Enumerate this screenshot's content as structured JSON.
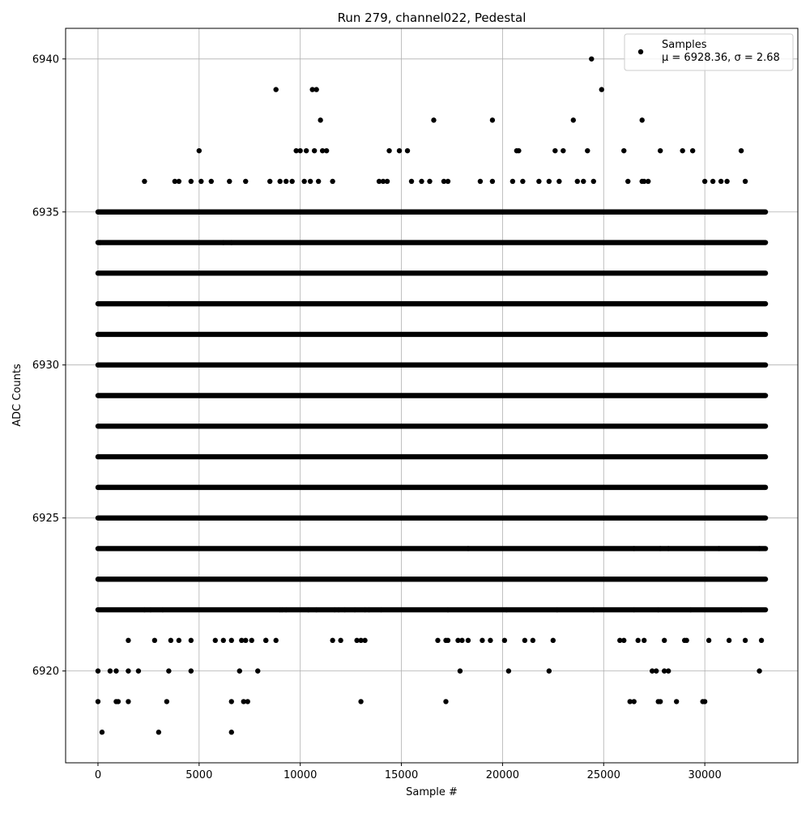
{
  "chart_data": {
    "type": "scatter",
    "title": "Run 279, channel022, Pedestal",
    "xlabel": "Sample #",
    "ylabel": "ADC Counts",
    "xlim": [
      -1600,
      34600
    ],
    "ylim": [
      6917,
      6941
    ],
    "grid": true,
    "legend_placement": "top-right",
    "x_ticks": [
      0,
      5000,
      10000,
      15000,
      20000,
      25000,
      30000
    ],
    "y_ticks": [
      6920,
      6925,
      6930,
      6935,
      6940
    ],
    "x_tick_labels": [
      "0",
      "5000",
      "10000",
      "15000",
      "20000",
      "25000",
      "30000"
    ],
    "y_tick_labels": [
      "6920",
      "6925",
      "6930",
      "6935",
      "6940"
    ],
    "sample_count": 33000,
    "series": [
      {
        "name": "Samples",
        "stats_label": "μ = 6928.36, σ = 2.68",
        "mean": 6928.36,
        "sigma": 2.68,
        "color": "#000000",
        "marker": "circle",
        "dense_levels": [
          6922,
          6923,
          6924,
          6925,
          6926,
          6927,
          6928,
          6929,
          6930,
          6931,
          6932,
          6933,
          6934,
          6935
        ],
        "x": [
          24400,
          8800,
          10600,
          10800,
          24900,
          11000,
          16600,
          19500,
          23500,
          26900,
          5000,
          9800,
          10000,
          10300,
          10700,
          11100,
          11300,
          14400,
          14900,
          15300,
          20700,
          20800,
          22600,
          23000,
          24200,
          26000,
          27800,
          28900,
          29400,
          31800,
          2300,
          3800,
          4000,
          4600,
          5100,
          5600,
          6500,
          7300,
          8500,
          9000,
          9300,
          9600,
          10200,
          10500,
          10900,
          11600,
          13900,
          14100,
          14300,
          15500,
          16000,
          16400,
          17100,
          17300,
          18900,
          19500,
          20500,
          21000,
          21800,
          22300,
          22800,
          23700,
          24000,
          24500,
          26200,
          26900,
          27000,
          27200,
          30000,
          30400,
          30800,
          31100,
          32000,
          800,
          1200,
          100,
          3500,
          6200,
          6600,
          18300,
          20000,
          26500,
          26400,
          27200,
          27800,
          28000,
          28200,
          30000,
          30700,
          31000,
          32700,
          2300,
          2600,
          3200,
          9100,
          11700,
          12200,
          12700,
          13200,
          13400,
          1500,
          2800,
          3600,
          4000,
          6200,
          7100,
          7600,
          8300,
          8800,
          12000,
          13000,
          16800,
          17200,
          18000,
          18300,
          21500,
          22500,
          26000,
          27000,
          29000,
          32000,
          9000,
          9300,
          10400,
          10800,
          11900,
          14000,
          17300,
          20200,
          22700,
          24500,
          26500,
          27700,
          29300,
          31800,
          4600,
          5800,
          6600,
          7300,
          8300,
          11600,
          12800,
          13200,
          17300,
          17800,
          19000,
          19400,
          20100,
          21100,
          25800,
          26700,
          28000,
          29100,
          30200,
          31200,
          32800,
          0,
          600,
          900,
          1500,
          2000,
          3500,
          4600,
          7000,
          7900,
          17900,
          20300,
          22300,
          27400,
          27600,
          28000,
          28200,
          32700,
          0,
          900,
          1000,
          1500,
          3400,
          6600,
          7200,
          7400,
          13000,
          17200,
          26300,
          26500,
          27700,
          27800,
          28600,
          29900,
          30000,
          200,
          3000,
          6600
        ],
        "y": [
          6940,
          6939,
          6939,
          6939,
          6939,
          6938,
          6938,
          6938,
          6938,
          6938,
          6937,
          6937,
          6937,
          6937,
          6937,
          6937,
          6937,
          6937,
          6937,
          6937,
          6937,
          6937,
          6937,
          6937,
          6937,
          6937,
          6937,
          6937,
          6937,
          6937,
          6936,
          6936,
          6936,
          6936,
          6936,
          6936,
          6936,
          6936,
          6936,
          6936,
          6936,
          6936,
          6936,
          6936,
          6936,
          6936,
          6936,
          6936,
          6936,
          6936,
          6936,
          6936,
          6936,
          6936,
          6936,
          6936,
          6936,
          6936,
          6936,
          6936,
          6936,
          6936,
          6936,
          6936,
          6936,
          6936,
          6936,
          6936,
          6936,
          6936,
          6936,
          6936,
          6936,
          6935,
          6935,
          6934,
          6932,
          6934,
          6934,
          6924,
          6923,
          6924,
          6923,
          6923,
          6924,
          6923,
          6924,
          6923,
          6924,
          6923,
          6924,
          6922,
          6922,
          6922,
          6922,
          6922,
          6922,
          6922,
          6922,
          6922,
          6921,
          6921,
          6921,
          6921,
          6921,
          6921,
          6921,
          6921,
          6921,
          6921,
          6921,
          6921,
          6921,
          6921,
          6921,
          6921,
          6921,
          6921,
          6921,
          6921,
          6921,
          6922,
          6922,
          6922,
          6922,
          6922,
          6922,
          6922,
          6922,
          6922,
          6922,
          6922,
          6922,
          6922,
          6922,
          6921,
          6921,
          6921,
          6921,
          6921,
          6921,
          6921,
          6921,
          6921,
          6921,
          6921,
          6921,
          6921,
          6921,
          6921,
          6921,
          6921,
          6921,
          6921,
          6921,
          6921,
          6920,
          6920,
          6920,
          6920,
          6920,
          6920,
          6920,
          6920,
          6920,
          6920,
          6920,
          6920,
          6920,
          6920,
          6920,
          6920,
          6920,
          6919,
          6919,
          6919,
          6919,
          6919,
          6919,
          6919,
          6919,
          6919,
          6919,
          6919,
          6919,
          6919,
          6919,
          6919,
          6919,
          6919,
          6918,
          6918,
          6918
        ]
      }
    ]
  }
}
